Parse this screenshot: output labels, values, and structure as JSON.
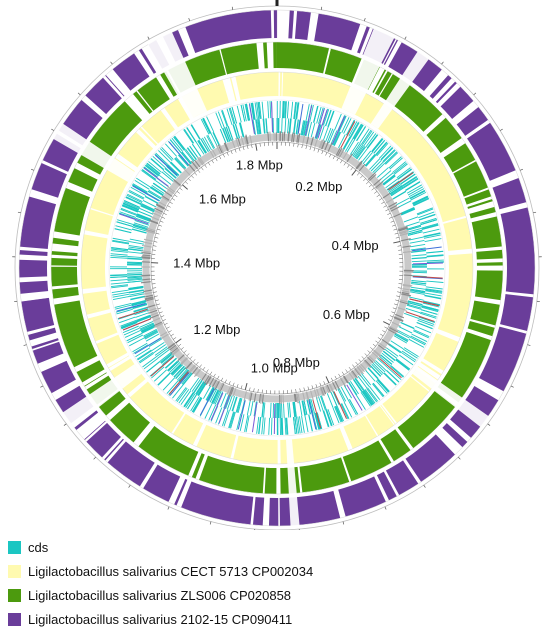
{
  "genome": {
    "size_mbp": 1.85,
    "position_labels": [
      "0.2 Mbp",
      "0.4 Mbp",
      "0.6 Mbp",
      "0.8 Mbp",
      "1.0 Mbp",
      "1.2 Mbp",
      "1.4 Mbp",
      "1.6 Mbp",
      "1.8 Mbp"
    ],
    "position_values_mbp": [
      0.2,
      0.4,
      0.6,
      0.8,
      1.0,
      1.2,
      1.4,
      1.6,
      1.8
    ]
  },
  "tracks": [
    {
      "key": "ring-purple",
      "name": "Ligilactobacillus salivarius 2102-15 CP090411",
      "color": "#6a3d9a"
    },
    {
      "key": "ring-green",
      "name": "Ligilactobacillus salivarius ZLS006 CP020858",
      "color": "#4c9a0e"
    },
    {
      "key": "ring-yellow",
      "name": "Ligilactobacillus salivarius CECT 5713 CP002034",
      "color": "#fffab0"
    },
    {
      "key": "ring-cds",
      "name": "cds",
      "color": "#1bc6c2"
    }
  ],
  "legend": [
    {
      "label": "cds",
      "color": "#1bc6c2"
    },
    {
      "label": "Ligilactobacillus salivarius CECT 5713 CP002034",
      "color": "#fffab0"
    },
    {
      "label": "Ligilactobacillus salivarius ZLS006 CP020858",
      "color": "#4c9a0e"
    },
    {
      "label": "Ligilactobacillus salivarius 2102-15 CP090411",
      "color": "#6a3d9a"
    }
  ]
}
